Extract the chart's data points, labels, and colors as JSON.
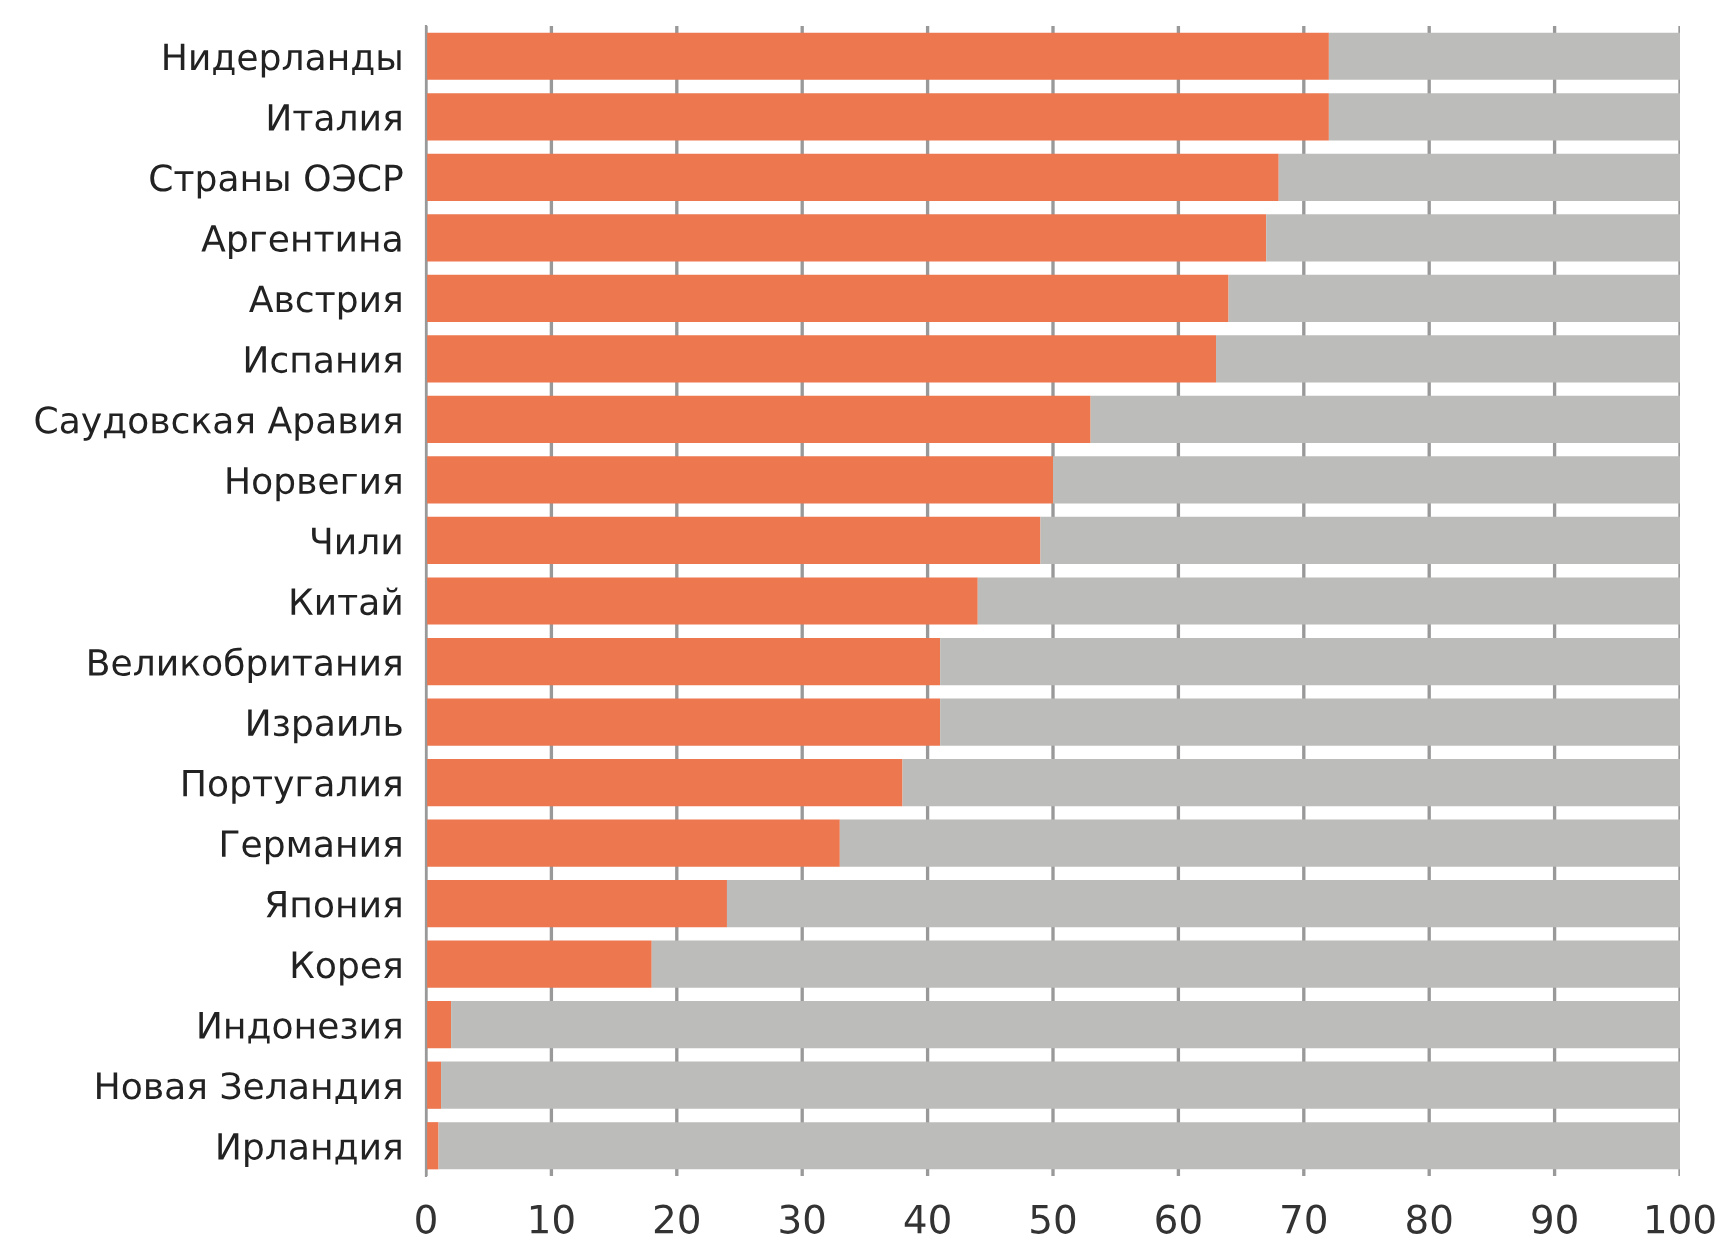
{
  "chart_data": {
    "type": "bar",
    "orientation": "horizontal",
    "stacked": true,
    "categories": [
      "Нидерланды",
      "Италия",
      "Страны ОЭСР",
      "Аргентина",
      "Австрия",
      "Испания",
      "Саудовская Аравия",
      "Норвегия",
      "Чили",
      "Китай",
      "Великобритания",
      "Израиль",
      "Португалия",
      "Германия",
      "Япония",
      "Корея",
      "Индонезия",
      "Новая Зеландия",
      "Ирландия"
    ],
    "series": [
      {
        "color": "#ed774f",
        "values": [
          72,
          72,
          68,
          67,
          64,
          63,
          53,
          50,
          49,
          44,
          41,
          41,
          38,
          33,
          24,
          18,
          2,
          1.2,
          1.0
        ]
      },
      {
        "color": "#bcbcba",
        "values": [
          28,
          28,
          32,
          33,
          36,
          37,
          47,
          50,
          51,
          56,
          59,
          59,
          62,
          67,
          76,
          82,
          98,
          98.8,
          99.0
        ]
      }
    ],
    "xlim": [
      0,
      100
    ],
    "xticks": [
      0,
      10,
      20,
      30,
      40,
      50,
      60,
      70,
      80,
      90,
      100
    ],
    "grid": "x",
    "legend": false
  }
}
